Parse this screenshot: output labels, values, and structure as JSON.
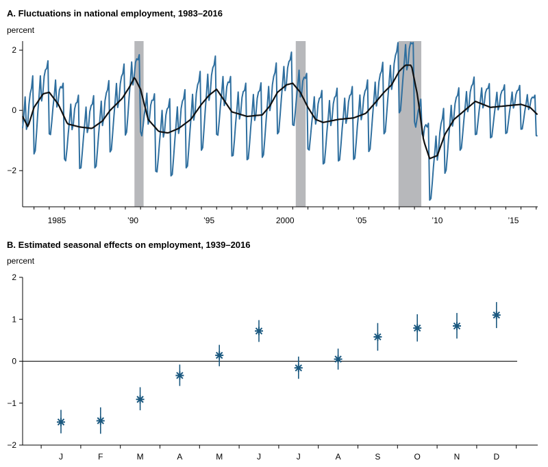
{
  "colors": {
    "series": "#2f6f9f",
    "trend": "#111111",
    "recession": "#b7b8bb",
    "marker": "#1a587f",
    "axis": "#000000"
  },
  "chart_data": [
    {
      "type": "line",
      "title": "A. Fluctuations in national employment, 1983–2016",
      "ylabel": "percent",
      "xlim": [
        1983.25,
        2017.1
      ],
      "ylim": [
        -3.2,
        2.3
      ],
      "yticks": [
        2,
        0,
        -2
      ],
      "ytick_labels": [
        "2",
        "0",
        "−2"
      ],
      "xticks": [
        1985,
        1990,
        1995,
        2000,
        2005,
        2010,
        2015
      ],
      "xtick_labels": [
        "1985",
        "’90",
        "’95",
        "2000",
        "’05",
        "’10",
        "’15"
      ],
      "recessions": [
        [
          1990.6,
          1991.2
        ],
        [
          2001.2,
          2001.85
        ],
        [
          2007.95,
          2009.45
        ]
      ],
      "trend": {
        "x": [
          1983.25,
          1983.6,
          1984.0,
          1984.6,
          1985.0,
          1985.6,
          1986.2,
          1987.0,
          1987.8,
          1988.5,
          1989.0,
          1989.8,
          1990.3,
          1990.6,
          1991.0,
          1991.5,
          1992.2,
          1992.8,
          1993.5,
          1994.3,
          1995.0,
          1995.5,
          1996.0,
          1997.0,
          1998.0,
          1999.0,
          1999.5,
          2000.0,
          2000.6,
          2001.0,
          2001.5,
          2002.0,
          2002.5,
          2003.0,
          2003.5,
          2004.0,
          2005.0,
          2005.8,
          2006.5,
          2007.0,
          2007.5,
          2008.0,
          2008.4,
          2008.8,
          2009.2,
          2009.6,
          2010.0,
          2010.5,
          2011.0,
          2011.6,
          2012.3,
          2013.0,
          2014.0,
          2015.0,
          2016.0,
          2016.6,
          2017.1
        ],
        "y": [
          -0.2,
          -0.55,
          0.1,
          0.55,
          0.6,
          0.2,
          -0.45,
          -0.55,
          -0.6,
          -0.35,
          0.0,
          0.4,
          0.8,
          1.1,
          0.7,
          -0.3,
          -0.7,
          -0.75,
          -0.6,
          -0.3,
          0.2,
          0.5,
          0.7,
          -0.05,
          -0.2,
          -0.15,
          0.15,
          0.6,
          0.85,
          0.9,
          0.6,
          0.1,
          -0.3,
          -0.4,
          -0.35,
          -0.3,
          -0.25,
          -0.1,
          0.3,
          0.6,
          0.85,
          1.3,
          1.5,
          1.5,
          0.5,
          -1.0,
          -1.6,
          -1.5,
          -0.8,
          -0.3,
          0.0,
          0.3,
          0.1,
          0.15,
          0.2,
          0.1,
          -0.15
        ]
      },
      "seasonal_amplitude": [
        {
          "x": 1983.25,
          "amp": 1.15
        },
        {
          "x": 1985,
          "amp": 0.95
        },
        {
          "x": 1990,
          "amp": 0.95
        },
        {
          "x": 1995,
          "amp": 1.05
        },
        {
          "x": 2000,
          "amp": 0.95
        },
        {
          "x": 2005,
          "amp": 0.95
        },
        {
          "x": 2010,
          "amp": 0.95
        },
        {
          "x": 2017.1,
          "amp": 0.5
        }
      ],
      "seasonal_effects_monthly": [
        -1.45,
        -1.42,
        -0.91,
        -0.34,
        0.14,
        0.72,
        -0.16,
        0.05,
        0.58,
        0.79,
        0.84,
        1.1
      ]
    },
    {
      "type": "scatter",
      "title": "B. Estimated seasonal effects on employment, 1939–2016",
      "ylabel": "percent",
      "ylim": [
        -2,
        2
      ],
      "yticks": [
        2,
        1,
        0,
        -1,
        -2
      ],
      "ytick_labels": [
        "2",
        "1",
        "0",
        "−1",
        "−2"
      ],
      "categories": [
        "J",
        "F",
        "M",
        "A",
        "M",
        "J",
        "J",
        "A",
        "S",
        "O",
        "N",
        "D"
      ],
      "values": [
        -1.45,
        -1.42,
        -0.91,
        -0.34,
        0.14,
        0.72,
        -0.16,
        0.05,
        0.58,
        0.79,
        0.84,
        1.1
      ],
      "lower": [
        -1.72,
        -1.73,
        -1.17,
        -0.59,
        -0.12,
        0.46,
        -0.42,
        -0.2,
        0.25,
        0.47,
        0.54,
        0.79
      ],
      "upper": [
        -1.16,
        -1.1,
        -0.62,
        -0.08,
        0.39,
        0.98,
        0.11,
        0.3,
        0.91,
        1.12,
        1.15,
        1.41
      ],
      "zero_line": true
    }
  ]
}
